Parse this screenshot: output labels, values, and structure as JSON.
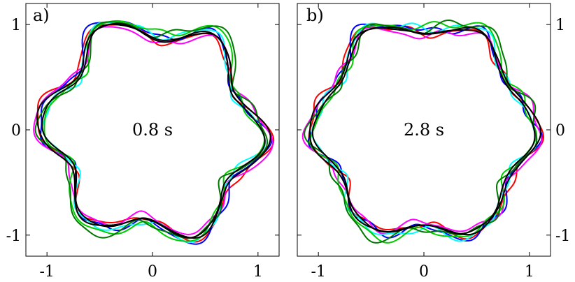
{
  "chart_data": [
    {
      "type": "line",
      "panel_label": "a)",
      "time_label": "0.8 s",
      "xlim": [
        -1.2,
        1.2
      ],
      "ylim": [
        -1.2,
        1.2
      ],
      "x_ticks": [
        {
          "value": -1,
          "label": "-1"
        },
        {
          "value": 0,
          "label": "0"
        },
        {
          "value": 1,
          "label": "1"
        }
      ],
      "y_ticks": [
        {
          "value": 1,
          "label": "1"
        },
        {
          "value": 0,
          "label": "0"
        },
        {
          "value": -1,
          "label": "-1"
        }
      ],
      "y_tick_side": "left",
      "grid": false,
      "series": [
        {
          "color": "#ff0000",
          "params": {
            "r0": 0.975,
            "a6": 0.12,
            "p6": 0.55,
            "a2": 0.05,
            "p2": 1.2,
            "a11": 0.025,
            "p11": 0.3,
            "a17": 0.015,
            "p17": 2.1
          }
        },
        {
          "color": "#0000ff",
          "params": {
            "r0": 0.985,
            "a6": 0.12,
            "p6": 0.5,
            "a2": 0.04,
            "p2": 2.0,
            "a11": 0.03,
            "p11": 1.5,
            "a17": 0.02,
            "p17": 0.7
          }
        },
        {
          "color": "#ff00ff",
          "params": {
            "r0": 0.97,
            "a6": 0.11,
            "p6": 0.6,
            "a2": 0.05,
            "p2": 0.4,
            "a11": 0.025,
            "p11": 2.6,
            "a17": 0.015,
            "p17": 1.4
          }
        },
        {
          "color": "#00ffff",
          "params": {
            "r0": 0.965,
            "a6": 0.12,
            "p6": 0.45,
            "a2": 0.04,
            "p2": 2.8,
            "a11": 0.02,
            "p11": 0.9,
            "a17": 0.02,
            "p17": 3.0
          }
        },
        {
          "color": "#00cc00",
          "params": {
            "r0": 0.98,
            "a6": 0.115,
            "p6": 0.62,
            "a2": 0.05,
            "p2": 3.5,
            "a11": 0.03,
            "p11": 2.0,
            "a17": 0.015,
            "p17": 0.2
          }
        },
        {
          "color": "#007700",
          "params": {
            "r0": 0.99,
            "a6": 0.125,
            "p6": 0.52,
            "a2": 0.04,
            "p2": 4.2,
            "a11": 0.025,
            "p11": 3.3,
            "a17": 0.02,
            "p17": 1.9
          }
        },
        {
          "color": "#000000",
          "params": {
            "r0": 0.975,
            "a6": 0.12,
            "p6": 0.54,
            "a2": 0.02,
            "p2": 1.0,
            "a11": 0.01,
            "p11": 0.5,
            "a17": 0.005,
            "p17": 0.5
          }
        },
        {
          "color": "#000000",
          "params": {
            "r0": 0.955,
            "a6": 0.115,
            "p6": 0.56,
            "a2": 0.02,
            "p2": 2.4,
            "a11": 0.01,
            "p11": 1.7,
            "a17": 0.005,
            "p17": 2.2
          }
        }
      ]
    },
    {
      "type": "line",
      "panel_label": "b)",
      "time_label": "2.8 s",
      "xlim": [
        -1.2,
        1.2
      ],
      "ylim": [
        -1.2,
        1.2
      ],
      "x_ticks": [
        {
          "value": -1,
          "label": "-1"
        },
        {
          "value": 0,
          "label": "0"
        },
        {
          "value": 1,
          "label": "1"
        }
      ],
      "y_ticks": [
        {
          "value": 1,
          "label": "1"
        },
        {
          "value": 0,
          "label": "0"
        },
        {
          "value": -1,
          "label": "-1"
        }
      ],
      "y_tick_side": "right",
      "grid": false,
      "series": [
        {
          "color": "#ff0000",
          "params": {
            "r0": 1.0,
            "a6": 0.085,
            "p6": 0.0,
            "a2": 0.04,
            "p2": 1.2,
            "a11": 0.03,
            "p11": 0.3,
            "a17": 0.02,
            "p17": 2.1
          }
        },
        {
          "color": "#0000ff",
          "params": {
            "r0": 1.005,
            "a6": 0.085,
            "p6": 0.05,
            "a2": 0.035,
            "p2": 2.0,
            "a11": 0.035,
            "p11": 1.5,
            "a17": 0.025,
            "p17": 0.7
          }
        },
        {
          "color": "#ff00ff",
          "params": {
            "r0": 0.995,
            "a6": 0.08,
            "p6": -0.05,
            "a2": 0.04,
            "p2": 0.4,
            "a11": 0.03,
            "p11": 2.6,
            "a17": 0.02,
            "p17": 1.4
          }
        },
        {
          "color": "#00ffff",
          "params": {
            "r0": 1.0,
            "a6": 0.085,
            "p6": 0.08,
            "a2": 0.035,
            "p2": 2.8,
            "a11": 0.025,
            "p11": 0.9,
            "a17": 0.025,
            "p17": 3.0
          }
        },
        {
          "color": "#00cc00",
          "params": {
            "r0": 1.01,
            "a6": 0.08,
            "p6": -0.03,
            "a2": 0.04,
            "p2": 3.5,
            "a11": 0.035,
            "p11": 2.0,
            "a17": 0.02,
            "p17": 0.2
          }
        },
        {
          "color": "#007700",
          "params": {
            "r0": 1.015,
            "a6": 0.09,
            "p6": 0.02,
            "a2": 0.035,
            "p2": 4.2,
            "a11": 0.03,
            "p11": 3.3,
            "a17": 0.025,
            "p17": 1.9
          }
        },
        {
          "color": "#000000",
          "params": {
            "r0": 1.0,
            "a6": 0.085,
            "p6": 0.01,
            "a2": 0.015,
            "p2": 1.0,
            "a11": 0.01,
            "p11": 0.5,
            "a17": 0.005,
            "p17": 0.5
          }
        },
        {
          "color": "#000000",
          "params": {
            "r0": 0.98,
            "a6": 0.08,
            "p6": 0.03,
            "a2": 0.015,
            "p2": 2.4,
            "a11": 0.01,
            "p11": 1.7,
            "a17": 0.005,
            "p17": 2.2
          }
        }
      ]
    }
  ]
}
